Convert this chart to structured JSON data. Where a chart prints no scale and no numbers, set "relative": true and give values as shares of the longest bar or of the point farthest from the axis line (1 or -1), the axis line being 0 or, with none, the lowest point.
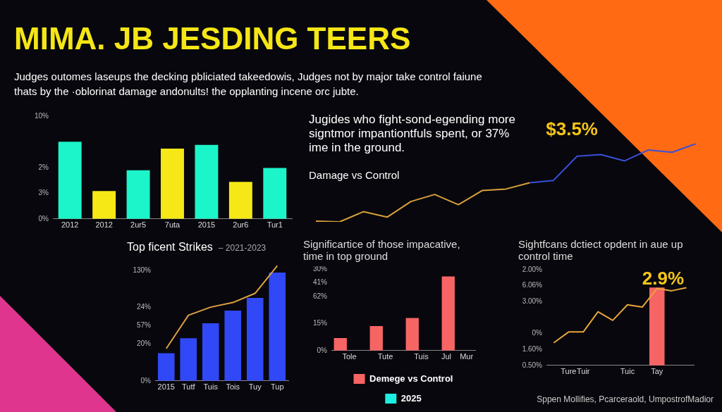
{
  "chart_data": [
    {
      "type": "bar",
      "title": "MIMA. JB JESDING  TEERS",
      "subtitle": "Judges outomes laseups the decking pbliciated takeedowis, Judges not by major take control faiune thats by the ·oblorinat damage andonults! the opplanting incene orc jubte.",
      "relative": true,
      "categories": [
        "2012",
        "2012",
        "2ur5",
        "7uta",
        "2015",
        "2ur6",
        "Tur1"
      ],
      "values": [
        1,
        0.36,
        0.63,
        0.91,
        0.96,
        0.48,
        0.66
      ],
      "colors": [
        "#1cf5c9",
        "#f5e816",
        "#1cf5c9",
        "#f5e816",
        "#1cf5c9",
        "#f5e816",
        "#1cf5c9"
      ],
      "annotations": [
        "0%",
        "3%",
        "2%",
        "10%"
      ]
    },
    {
      "type": "line",
      "title": "Jugides who fight-sond-egending more signtmor impantiontfuls spent, or 37% ime in the ground.",
      "subtitle": "Damage vs Control",
      "relative": true,
      "categories": [
        null,
        null,
        null,
        null,
        null,
        null,
        null,
        null,
        null,
        null,
        null,
        null,
        null,
        null,
        null,
        null,
        null
      ],
      "series": [
        {
          "color": "#d9a03a",
          "values": [
            0.01,
            0,
            0.13,
            0.06,
            0.26,
            0.35,
            0.22,
            0.4,
            0.42,
            0.5,
            null,
            null,
            null,
            null,
            null,
            null,
            null
          ]
        },
        {
          "color": "#3a4fd8",
          "values": [
            null,
            null,
            null,
            null,
            null,
            null,
            null,
            null,
            null,
            0.5,
            0.53,
            0.84,
            0.86,
            0.78,
            0.92,
            0.89,
            1
          ]
        }
      ],
      "annotations": [
        "$3.5%"
      ]
    },
    {
      "type": "bar",
      "title": "Top ficent Strikes",
      "subtitle": "– 2021-2023",
      "relative": true,
      "categories": [
        "2015",
        "Tutf",
        "Tuis",
        "Tois",
        "Tuy",
        "Tup"
      ],
      "series": [
        {
          "color": "#3048f5",
          "values": [
            0.24,
            0.37,
            0.5,
            0.61,
            0.72,
            0.94
          ]
        },
        {
          "type": "line",
          "color": "#e0a040",
          "values": [
            0.28,
            0.57,
            0.64,
            0.68,
            0.76,
            1
          ]
        }
      ],
      "annotations": [
        "0%",
        "20%",
        "57%",
        "24%",
        "130%"
      ]
    },
    {
      "type": "bar",
      "title": "Significartice of those impacative, time in top ground",
      "relative": true,
      "categories": [
        "Tole",
        "Tute",
        "Tuis",
        "Jul    Mur"
      ],
      "series": [
        {
          "name": "Demege vs Control",
          "color": "#f76464",
          "values": [
            0.17,
            0.33,
            0.44,
            1
          ]
        },
        {
          "name": "2025",
          "color": "#1cf0e0",
          "values": [
            null,
            null,
            null,
            null
          ]
        }
      ],
      "legend": "bottom",
      "annotations": [
        "0%",
        "15%",
        "62%",
        "41%",
        "30%"
      ]
    },
    {
      "type": "bar",
      "title": "Sightfcans dctiect opdent in aue up control time",
      "relative": true,
      "categories": [
        null,
        "Ture",
        "Tuir",
        null,
        null,
        "Tuic",
        null,
        "Tay",
        null,
        null
      ],
      "series": [
        {
          "color": "#f76464",
          "values": [
            null,
            null,
            null,
            null,
            null,
            null,
            null,
            1,
            null,
            null
          ]
        },
        {
          "type": "line",
          "color": "#e8a43a",
          "values": [
            0.29,
            0.43,
            0.43,
            0.69,
            0.58,
            0.78,
            0.75,
            0.99,
            0.96,
            1
          ]
        }
      ],
      "annotations": [
        "2.9%",
        "Sppen Mollifies, Pcarceraold, UmpostrofMadior",
        "0.50%",
        "1.60%",
        "0%",
        "3.00%",
        "6.06%",
        "2.00%"
      ]
    }
  ]
}
